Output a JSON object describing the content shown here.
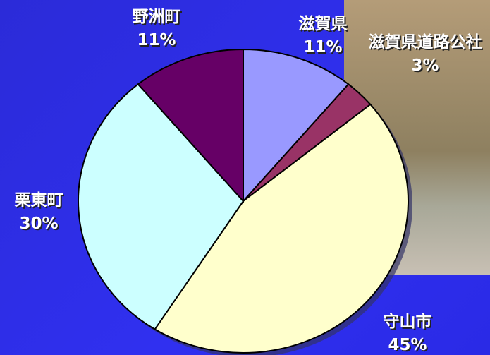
{
  "chart_data": {
    "type": "pie",
    "categories": [
      "滋賀県",
      "滋賀県道路公社",
      "守山市",
      "栗東町",
      "野洲町"
    ],
    "values": [
      11,
      3,
      45,
      30,
      11
    ],
    "value_labels": [
      "11%",
      "3%",
      "45%",
      "30%",
      "11%"
    ],
    "colors": [
      "#9999ff",
      "#993366",
      "#ffffcc",
      "#ccffff",
      "#660066"
    ]
  }
}
